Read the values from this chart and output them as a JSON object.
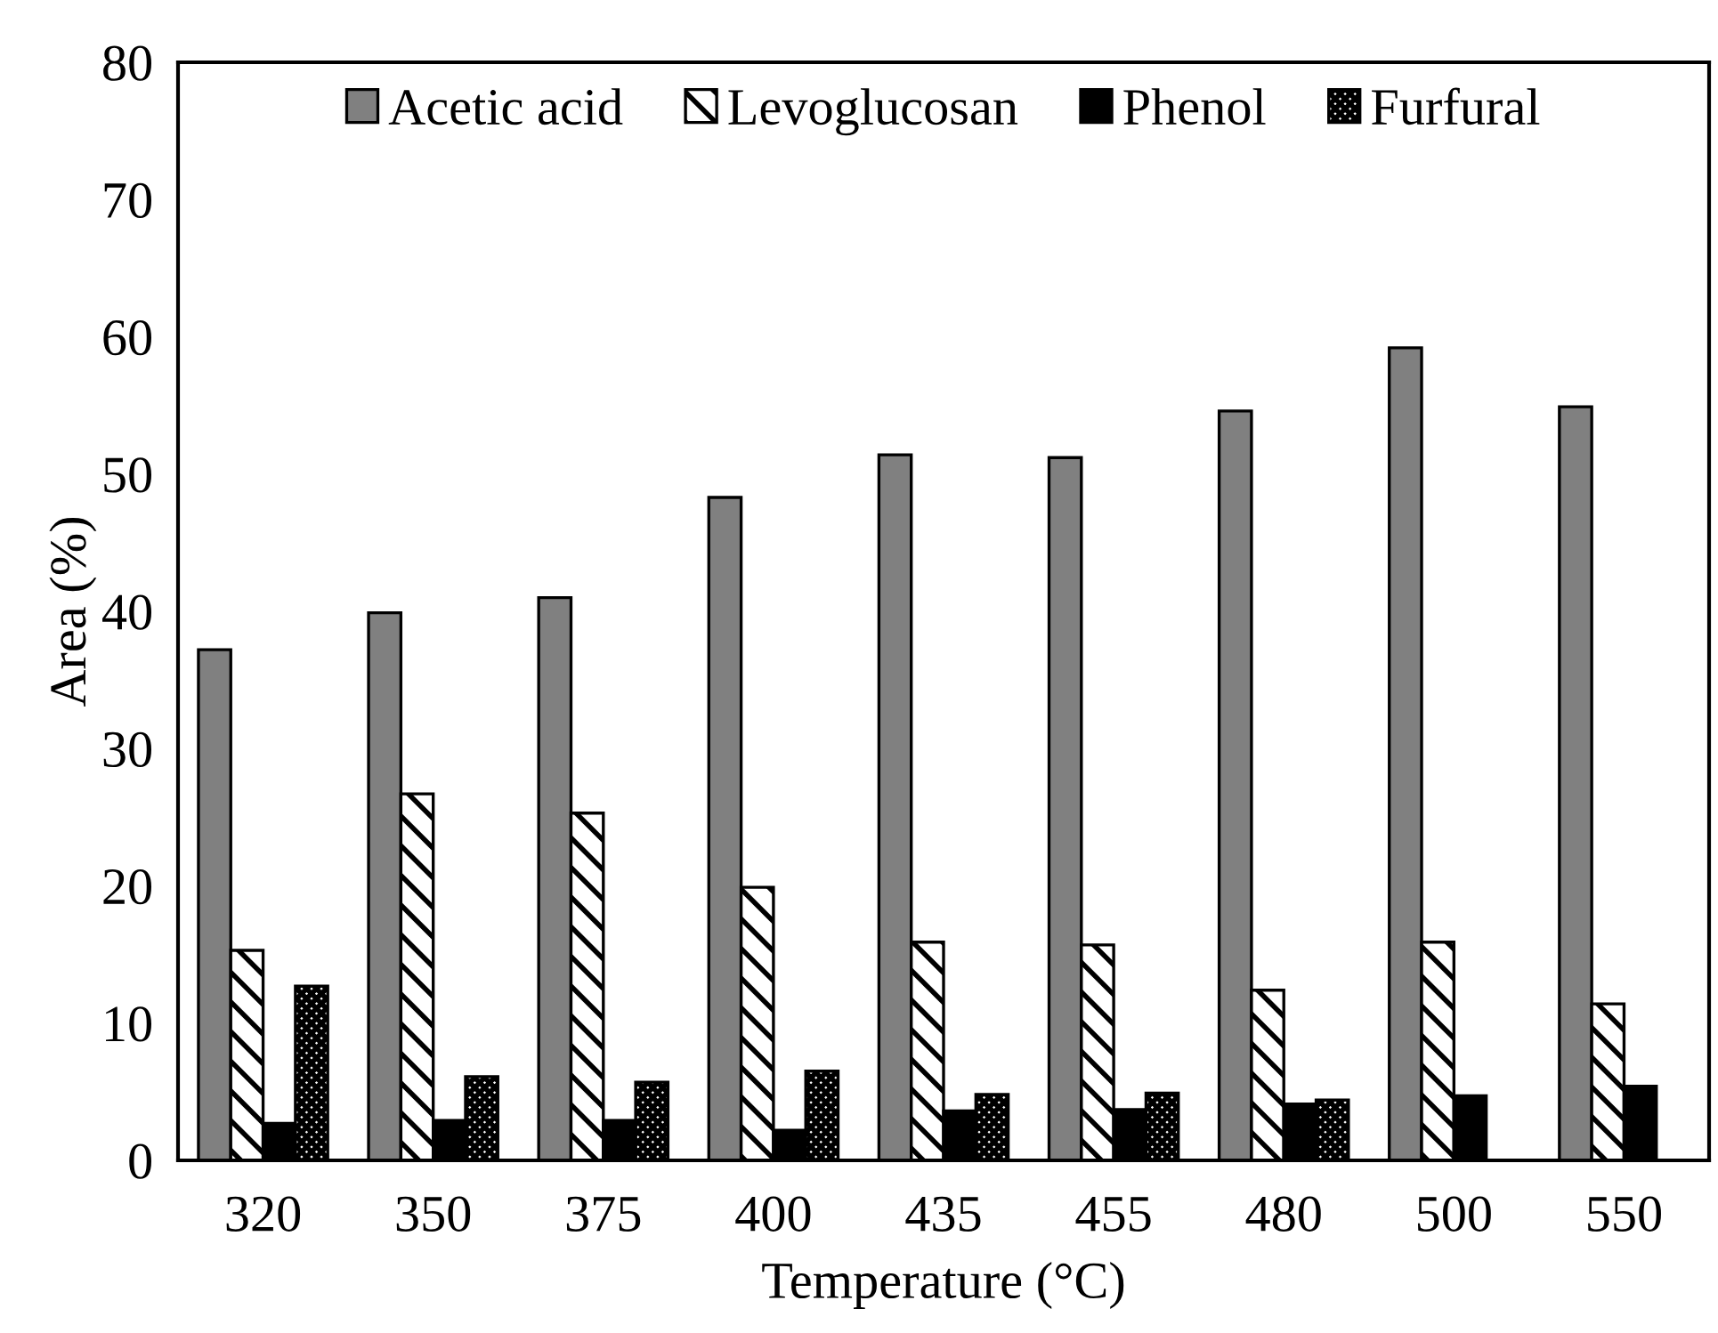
{
  "chart_data": {
    "type": "bar",
    "xlabel": "Temperature (°C)",
    "ylabel": "Area (%)",
    "categories": [
      "320",
      "350",
      "375",
      "400",
      "435",
      "455",
      "480",
      "500",
      "550"
    ],
    "series": [
      {
        "name": "Acetic acid",
        "color": "#808080",
        "values": [
          37.2,
          39.9,
          41.0,
          48.3,
          51.4,
          51.2,
          54.6,
          59.2,
          54.9
        ]
      },
      {
        "name": "Levoglucosan",
        "color": "#000000",
        "values": [
          15.3,
          26.7,
          25.3,
          19.9,
          15.9,
          15.7,
          12.4,
          15.9,
          11.4
        ]
      },
      {
        "name": "Phenol",
        "color": "#000000",
        "values": [
          2.7,
          2.9,
          2.9,
          2.2,
          3.6,
          3.7,
          4.1,
          4.7,
          5.4
        ]
      },
      {
        "name": "Furfural",
        "color": "#000000",
        "values": [
          12.7,
          6.1,
          5.7,
          6.5,
          4.8,
          4.9,
          4.4,
          null,
          null
        ]
      }
    ],
    "ylim": [
      0,
      80
    ],
    "yticks": [
      0,
      10,
      20,
      30,
      40,
      50,
      60,
      70,
      80
    ],
    "grid": false,
    "legend": "top"
  }
}
